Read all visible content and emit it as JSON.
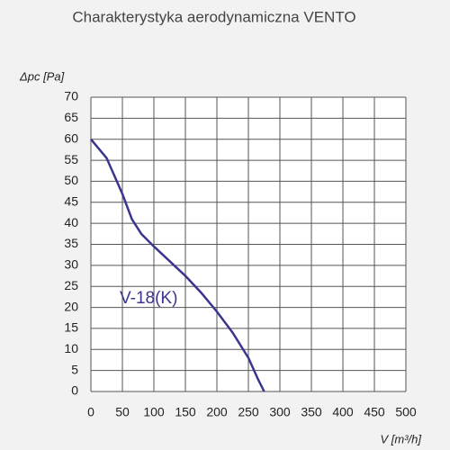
{
  "chart_data": {
    "type": "line",
    "title": "Charakterystyka aerodynamiczna  VENTO",
    "y_label": "Δpc [Pa]",
    "x_label": "V [m³/h]",
    "x": [
      0,
      25,
      50,
      65,
      80,
      100,
      125,
      150,
      175,
      200,
      225,
      250,
      265,
      275
    ],
    "series": [
      {
        "name": "V-18(K)",
        "color": "#3b3590",
        "values": [
          60,
          55.5,
          47,
          41,
          37.5,
          34.5,
          31,
          27.5,
          23.5,
          19,
          14,
          8,
          3,
          0
        ]
      }
    ],
    "xlim": [
      0,
      500
    ],
    "xticks": [
      0,
      50,
      100,
      150,
      200,
      250,
      300,
      350,
      400,
      450,
      500
    ],
    "ylim": [
      0,
      70
    ],
    "yticks": [
      0,
      5,
      10,
      15,
      20,
      25,
      30,
      35,
      40,
      45,
      50,
      55,
      60,
      65,
      70
    ],
    "grid": true
  }
}
